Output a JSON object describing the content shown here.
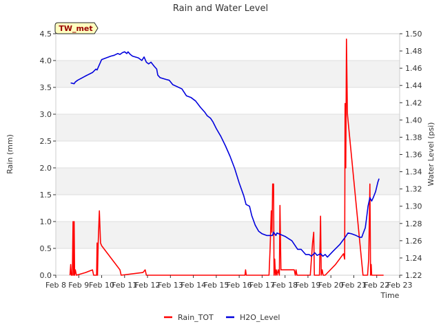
{
  "chart_data": {
    "type": "line",
    "title": "Rain and Water Level",
    "xlabel": "Time",
    "ylabel_left": "Rain (mm)",
    "ylabel_right": "Water Level (psi)",
    "station_label": "TW_met",
    "x_ticks": [
      "Feb 8",
      "Feb 9",
      "Feb 10",
      "Feb 11",
      "Feb 12",
      "Feb 13",
      "Feb 14",
      "Feb 15",
      "Feb 16",
      "Feb 17",
      "Feb 18",
      "Feb 19",
      "Feb 20",
      "Feb 21",
      "Feb 22",
      "Feb 23"
    ],
    "x_range": [
      8,
      23
    ],
    "y_left_range": [
      0,
      4.5
    ],
    "y_left_ticks": [
      "0.0",
      "0.5",
      "1.0",
      "1.5",
      "2.0",
      "2.5",
      "3.0",
      "3.5",
      "4.0",
      "4.5"
    ],
    "y_right_range": [
      1.22,
      1.5
    ],
    "y_right_ticks": [
      "1.22",
      "1.24",
      "1.26",
      "1.28",
      "1.30",
      "1.32",
      "1.34",
      "1.36",
      "1.38",
      "1.40",
      "1.42",
      "1.44",
      "1.46",
      "1.48",
      "1.50"
    ],
    "grid": true,
    "legend_placement": "bottom-center",
    "series": [
      {
        "name": "Rain_TOT",
        "color": "#ff0000",
        "axis": "left",
        "points": [
          [
            8.62,
            0.0
          ],
          [
            8.65,
            0.2
          ],
          [
            8.68,
            0.0
          ],
          [
            8.72,
            0.0
          ],
          [
            8.75,
            1.0
          ],
          [
            8.78,
            0.0
          ],
          [
            8.8,
            1.0
          ],
          [
            8.82,
            0.0
          ],
          [
            8.85,
            0.1
          ],
          [
            8.9,
            0.0
          ],
          [
            9.3,
            0.05
          ],
          [
            9.6,
            0.1
          ],
          [
            9.65,
            0.0
          ],
          [
            9.78,
            0.0
          ],
          [
            9.8,
            0.6
          ],
          [
            9.82,
            0.0
          ],
          [
            9.85,
            0.6
          ],
          [
            9.9,
            1.2
          ],
          [
            9.95,
            0.6
          ],
          [
            10.0,
            0.55
          ],
          [
            10.8,
            0.1
          ],
          [
            10.85,
            0.0
          ],
          [
            11.8,
            0.05
          ],
          [
            11.9,
            0.1
          ],
          [
            11.95,
            0.0
          ],
          [
            16.25,
            0.0
          ],
          [
            16.28,
            0.1
          ],
          [
            16.31,
            0.0
          ],
          [
            17.3,
            0.0
          ],
          [
            17.35,
            0.5
          ],
          [
            17.4,
            1.2
          ],
          [
            17.43,
            0.8
          ],
          [
            17.46,
            1.7
          ],
          [
            17.5,
            1.7
          ],
          [
            17.52,
            0.0
          ],
          [
            17.55,
            0.3
          ],
          [
            17.58,
            0.0
          ],
          [
            17.62,
            0.1
          ],
          [
            17.65,
            0.0
          ],
          [
            17.7,
            0.1
          ],
          [
            17.75,
            0.0
          ],
          [
            17.78,
            1.3
          ],
          [
            17.82,
            0.1
          ],
          [
            18.4,
            0.1
          ],
          [
            18.45,
            0.0
          ],
          [
            18.48,
            0.1
          ],
          [
            18.52,
            0.0
          ],
          [
            19.1,
            0.0
          ],
          [
            19.2,
            0.6
          ],
          [
            19.25,
            0.8
          ],
          [
            19.28,
            0.0
          ],
          [
            19.5,
            0.0
          ],
          [
            19.55,
            1.1
          ],
          [
            19.58,
            0.0
          ],
          [
            19.62,
            0.1
          ],
          [
            19.66,
            0.0
          ],
          [
            19.75,
            0.0
          ],
          [
            20.2,
            0.2
          ],
          [
            20.55,
            0.4
          ],
          [
            20.6,
            0.3
          ],
          [
            20.62,
            3.2
          ],
          [
            20.65,
            2.0
          ],
          [
            20.68,
            4.4
          ],
          [
            20.72,
            3.0
          ],
          [
            21.4,
            0.0
          ],
          [
            21.6,
            0.0
          ],
          [
            21.65,
            0.3
          ],
          [
            21.7,
            1.7
          ],
          [
            21.73,
            0.0
          ],
          [
            21.76,
            0.2
          ],
          [
            21.78,
            0.0
          ],
          [
            22.3,
            0.0
          ]
        ]
      },
      {
        "name": "H2O_Level",
        "color": "#0000dd",
        "axis": "right",
        "points": [
          [
            8.65,
            1.443
          ],
          [
            8.8,
            1.442
          ],
          [
            8.85,
            1.444
          ],
          [
            8.95,
            1.446
          ],
          [
            9.3,
            1.451
          ],
          [
            9.6,
            1.455
          ],
          [
            9.75,
            1.459
          ],
          [
            9.8,
            1.458
          ],
          [
            9.85,
            1.461
          ],
          [
            10.0,
            1.47
          ],
          [
            10.4,
            1.474
          ],
          [
            10.55,
            1.475
          ],
          [
            10.7,
            1.477
          ],
          [
            10.8,
            1.476
          ],
          [
            10.9,
            1.478
          ],
          [
            11.0,
            1.479
          ],
          [
            11.1,
            1.477
          ],
          [
            11.15,
            1.479
          ],
          [
            11.25,
            1.476
          ],
          [
            11.35,
            1.474
          ],
          [
            11.6,
            1.472
          ],
          [
            11.75,
            1.469
          ],
          [
            11.85,
            1.473
          ],
          [
            11.95,
            1.467
          ],
          [
            12.05,
            1.465
          ],
          [
            12.15,
            1.467
          ],
          [
            12.3,
            1.462
          ],
          [
            12.4,
            1.459
          ],
          [
            12.45,
            1.452
          ],
          [
            12.55,
            1.449
          ],
          [
            12.8,
            1.447
          ],
          [
            12.95,
            1.446
          ],
          [
            13.1,
            1.441
          ],
          [
            13.5,
            1.436
          ],
          [
            13.7,
            1.428
          ],
          [
            13.9,
            1.426
          ],
          [
            14.1,
            1.422
          ],
          [
            14.3,
            1.415
          ],
          [
            14.5,
            1.409
          ],
          [
            14.6,
            1.405
          ],
          [
            14.75,
            1.402
          ],
          [
            14.85,
            1.398
          ],
          [
            15.0,
            1.39
          ],
          [
            15.2,
            1.381
          ],
          [
            15.4,
            1.37
          ],
          [
            15.6,
            1.358
          ],
          [
            15.8,
            1.344
          ],
          [
            16.0,
            1.327
          ],
          [
            16.2,
            1.312
          ],
          [
            16.3,
            1.302
          ],
          [
            16.45,
            1.3
          ],
          [
            16.55,
            1.289
          ],
          [
            16.7,
            1.278
          ],
          [
            16.85,
            1.271
          ],
          [
            17.0,
            1.268
          ],
          [
            17.2,
            1.266
          ],
          [
            17.45,
            1.266
          ],
          [
            17.5,
            1.27
          ],
          [
            17.6,
            1.266
          ],
          [
            17.65,
            1.269
          ],
          [
            18.0,
            1.265
          ],
          [
            18.3,
            1.26
          ],
          [
            18.55,
            1.25
          ],
          [
            18.7,
            1.25
          ],
          [
            18.9,
            1.244
          ],
          [
            19.05,
            1.244
          ],
          [
            19.15,
            1.242
          ],
          [
            19.3,
            1.246
          ],
          [
            19.4,
            1.243
          ],
          [
            19.55,
            1.245
          ],
          [
            19.65,
            1.242
          ],
          [
            19.75,
            1.244
          ],
          [
            19.85,
            1.241
          ],
          [
            20.1,
            1.248
          ],
          [
            20.4,
            1.256
          ],
          [
            20.65,
            1.265
          ],
          [
            20.75,
            1.269
          ],
          [
            20.9,
            1.268
          ],
          [
            21.1,
            1.266
          ],
          [
            21.25,
            1.264
          ],
          [
            21.35,
            1.264
          ],
          [
            21.4,
            1.268
          ],
          [
            21.5,
            1.275
          ],
          [
            21.55,
            1.285
          ],
          [
            21.62,
            1.3
          ],
          [
            21.7,
            1.31
          ],
          [
            21.78,
            1.306
          ],
          [
            21.85,
            1.31
          ],
          [
            21.95,
            1.317
          ],
          [
            22.05,
            1.328
          ],
          [
            22.1,
            1.332
          ]
        ]
      }
    ]
  }
}
